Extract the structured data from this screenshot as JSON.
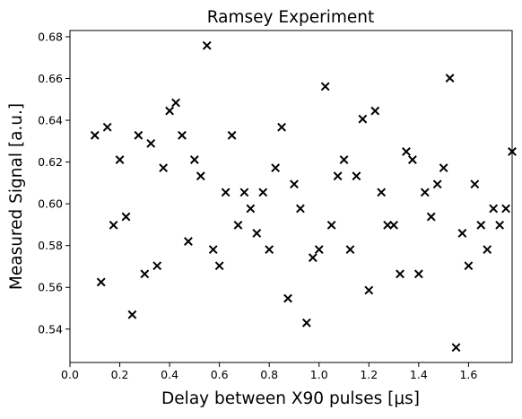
{
  "chart_data": {
    "type": "scatter",
    "title": "Ramsey Experiment",
    "xlabel": "Delay between X90 pulses [μs]",
    "ylabel": "Measured Signal [a.u.]",
    "marker": "x",
    "color": "#000000",
    "xlim": [
      0.0,
      1.775
    ],
    "ylim": [
      0.524,
      0.683
    ],
    "x_ticks": [
      "0.0",
      "0.2",
      "0.4",
      "0.6",
      "0.8",
      "1.0",
      "1.2",
      "1.4",
      "1.6"
    ],
    "x_tick_values": [
      0.0,
      0.2,
      0.4,
      0.6,
      0.8,
      1.0,
      1.2,
      1.4,
      1.6
    ],
    "y_ticks": [
      "0.54",
      "0.56",
      "0.58",
      "0.60",
      "0.62",
      "0.64",
      "0.66",
      "0.68"
    ],
    "y_tick_values": [
      0.54,
      0.56,
      0.58,
      0.6,
      0.62,
      0.64,
      0.66,
      0.68
    ],
    "grid": false,
    "x": [
      0.1,
      0.125,
      0.15,
      0.175,
      0.2,
      0.225,
      0.25,
      0.275,
      0.3,
      0.325,
      0.35,
      0.375,
      0.4,
      0.425,
      0.45,
      0.475,
      0.5,
      0.525,
      0.55,
      0.575,
      0.6,
      0.625,
      0.65,
      0.675,
      0.7,
      0.725,
      0.75,
      0.775,
      0.8,
      0.825,
      0.85,
      0.875,
      0.9,
      0.925,
      0.95,
      0.975,
      1.0,
      1.025,
      1.05,
      1.075,
      1.1,
      1.125,
      1.15,
      1.175,
      1.2,
      1.225,
      1.25,
      1.275,
      1.3,
      1.325,
      1.35,
      1.375,
      1.4,
      1.425,
      1.45,
      1.475,
      1.5,
      1.525,
      1.55,
      1.575,
      1.6,
      1.625,
      1.65,
      1.675,
      1.7,
      1.725,
      1.75,
      1.775
    ],
    "y": [
      0.6328,
      0.5625,
      0.6367,
      0.5898,
      0.6211,
      0.5938,
      0.5469,
      0.6328,
      0.5664,
      0.6289,
      0.5703,
      0.6172,
      0.6445,
      0.6484,
      0.6328,
      0.582,
      0.6211,
      0.6133,
      0.6758,
      0.5781,
      0.5703,
      0.6055,
      0.6328,
      0.5898,
      0.6055,
      0.5977,
      0.5859,
      0.6055,
      0.5781,
      0.6172,
      0.6367,
      0.5547,
      0.6094,
      0.5977,
      0.543,
      0.5742,
      0.5781,
      0.6562,
      0.5898,
      0.6133,
      0.6211,
      0.5781,
      0.6133,
      0.6406,
      0.5586,
      0.6445,
      0.6055,
      0.5898,
      0.5898,
      0.5664,
      0.625,
      0.6211,
      0.5664,
      0.6055,
      0.5938,
      0.6094,
      0.6172,
      0.6602,
      0.5312,
      0.5859,
      0.5703,
      0.6094,
      0.5898,
      0.5781,
      0.5977,
      0.5898,
      0.5977,
      0.625
    ]
  }
}
